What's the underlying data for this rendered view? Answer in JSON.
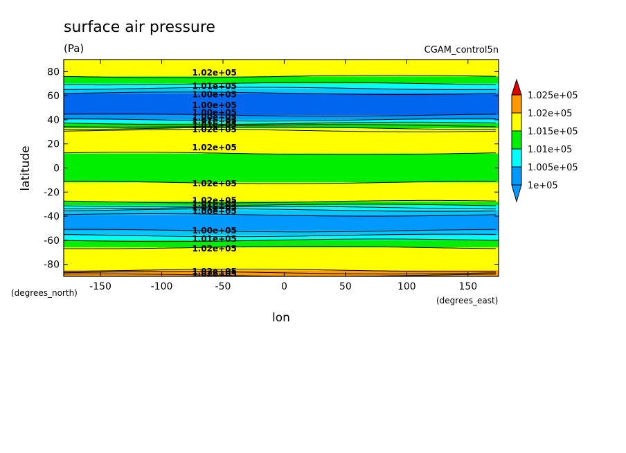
{
  "chart_data": {
    "type": "heatmap",
    "title": "surface air pressure",
    "units": "(Pa)",
    "dataset": "CGAM_control5n",
    "xlabel": "lon",
    "ylabel": "latitude",
    "x_units": "(degrees_east)",
    "y_units": "(degrees_north)",
    "xlim": [
      -180,
      175
    ],
    "ylim": [
      -90,
      90
    ],
    "x_ticks": [
      -150,
      -100,
      -50,
      0,
      50,
      100,
      150
    ],
    "y_ticks": [
      -80,
      -60,
      -40,
      -20,
      0,
      20,
      40,
      60,
      80
    ],
    "colorbar": {
      "levels": [
        {
          "label": "1.025e+05",
          "color": "#e00000"
        },
        {
          "label": "1.02e+05",
          "color": "#ff9900"
        },
        {
          "label": "1.015e+05",
          "color": "#ffff00"
        },
        {
          "label": "1.01e+05",
          "color": "#00ee00"
        },
        {
          "label": "1.005e+05",
          "color": "#00ffff"
        },
        {
          "label": "1e+05",
          "color": "#0099ff"
        }
      ],
      "extends": "both"
    },
    "bands": [
      {
        "lat_from": 90,
        "lat_to": 76,
        "color": "#ffff00"
      },
      {
        "lat_from": 76,
        "lat_to": 70,
        "color": "#00ee00"
      },
      {
        "lat_from": 70,
        "lat_to": 66,
        "color": "#00ffff"
      },
      {
        "lat_from": 66,
        "lat_to": 62,
        "color": "#00c8ff"
      },
      {
        "lat_from": 62,
        "lat_to": 44,
        "color": "#0066ee"
      },
      {
        "lat_from": 44,
        "lat_to": 40,
        "color": "#0099ff"
      },
      {
        "lat_from": 40,
        "lat_to": 37,
        "color": "#00ffff"
      },
      {
        "lat_from": 37,
        "lat_to": 33,
        "color": "#00ee00"
      },
      {
        "lat_from": 33,
        "lat_to": 12,
        "color": "#ffff00"
      },
      {
        "lat_from": 12,
        "lat_to": -12,
        "color": "#00ee00"
      },
      {
        "lat_from": -12,
        "lat_to": -28,
        "color": "#ffff00"
      },
      {
        "lat_from": -28,
        "lat_to": -31,
        "color": "#00ee00"
      },
      {
        "lat_from": -31,
        "lat_to": -35,
        "color": "#00ffff"
      },
      {
        "lat_from": -35,
        "lat_to": -39,
        "color": "#00c8ff"
      },
      {
        "lat_from": -39,
        "lat_to": -52,
        "color": "#0099ff"
      },
      {
        "lat_from": -52,
        "lat_to": -56,
        "color": "#00c8ff"
      },
      {
        "lat_from": -56,
        "lat_to": -60,
        "color": "#00ffff"
      },
      {
        "lat_from": -60,
        "lat_to": -66,
        "color": "#00ee00"
      },
      {
        "lat_from": -66,
        "lat_to": -85,
        "color": "#ffff00"
      },
      {
        "lat_from": -85,
        "lat_to": -90,
        "color": "#ff9900"
      }
    ],
    "contour_lats": [
      76,
      70,
      66,
      62,
      44,
      40,
      37,
      35,
      33,
      31,
      12,
      -12,
      -28,
      -31,
      -33,
      -35,
      -39,
      -52,
      -56,
      -60,
      -66,
      -85,
      -87,
      -89
    ],
    "contour_labels": [
      {
        "text": "1.02e+05",
        "lon": -57,
        "lat": 79
      },
      {
        "text": "1.01e+05",
        "lon": -57,
        "lat": 68
      },
      {
        "text": "1.00e+05",
        "lon": -57,
        "lat": 61
      },
      {
        "text": "1.00e+05",
        "lon": -57,
        "lat": 52
      },
      {
        "text": "1.00e+05",
        "lon": -57,
        "lat": 46
      },
      {
        "text": "1.00e+05",
        "lon": -57,
        "lat": 42
      },
      {
        "text": "1.01e+05",
        "lon": -57,
        "lat": 39
      },
      {
        "text": "1.01e+05",
        "lon": -57,
        "lat": 36
      },
      {
        "text": "1.02e+05",
        "lon": -57,
        "lat": 32
      },
      {
        "text": "1.02e+05",
        "lon": -57,
        "lat": 17
      },
      {
        "text": "1.02e+05",
        "lon": -57,
        "lat": -13
      },
      {
        "text": "1.02e+05",
        "lon": -57,
        "lat": -27
      },
      {
        "text": "1.01e+05",
        "lon": -57,
        "lat": -30
      },
      {
        "text": "1.01e+05",
        "lon": -57,
        "lat": -33
      },
      {
        "text": "1.00e+05",
        "lon": -57,
        "lat": -36
      },
      {
        "text": "1.00e+05",
        "lon": -57,
        "lat": -52
      },
      {
        "text": "1.01e+05",
        "lon": -57,
        "lat": -59
      },
      {
        "text": "1.02e+05",
        "lon": -57,
        "lat": -67
      },
      {
        "text": "1.02e+05",
        "lon": -57,
        "lat": -86
      },
      {
        "text": "1.02e+05",
        "lon": -57,
        "lat": -88
      }
    ]
  }
}
